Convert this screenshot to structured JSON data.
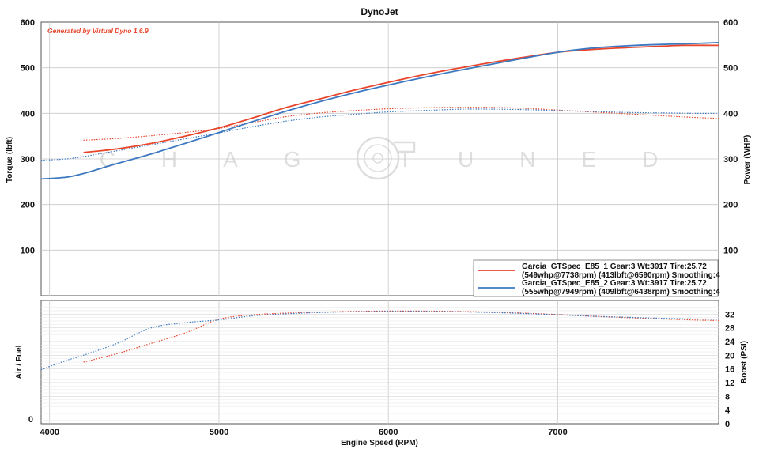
{
  "chart_data": [
    {
      "type": "line",
      "title": "DynoJet",
      "note": "Generated by Virtual Dyno 1.6.9",
      "xlabel": "Engine Speed (RPM)",
      "ylabel": "Torque (lbft)",
      "y2label": "Power (WHP)",
      "xlim": [
        3950,
        7950
      ],
      "ylim": [
        0,
        600
      ],
      "y2lim": [
        0,
        600
      ],
      "xticks": [
        4000,
        5000,
        6000,
        7000
      ],
      "yticks": [
        100,
        200,
        300,
        400,
        500,
        600
      ],
      "y2ticks": [
        100,
        200,
        300,
        400,
        500,
        600
      ],
      "grid": true,
      "legend_position": "bottom-right",
      "watermark": "CHAG TUNED",
      "series": [
        {
          "name": "Garcia_GTSpec_E85_1 Gear:3 Wt:3917 Tire:25.72",
          "detail": "(549whp@7738rpm) (413lbft@6590rpm) Smoothing:4",
          "color": "#e8452b",
          "measure": "power",
          "style": "solid",
          "x": [
            4200,
            4400,
            4600,
            4800,
            5000,
            5200,
            5400,
            5600,
            5800,
            6000,
            6200,
            6400,
            6600,
            6800,
            7000,
            7200,
            7400,
            7600,
            7738,
            7950
          ],
          "y": [
            314,
            322,
            334,
            350,
            368,
            390,
            413,
            432,
            451,
            468,
            484,
            498,
            511,
            523,
            534,
            540,
            544,
            547,
            549,
            549
          ]
        },
        {
          "name": "Garcia_GTSpec_E85_1 Gear:3 Wt:3917 Tire:25.72",
          "color": "#e8452b",
          "measure": "torque",
          "style": "dotted",
          "x": [
            4200,
            4400,
            4600,
            4800,
            5000,
            5200,
            5400,
            5600,
            5800,
            6000,
            6200,
            6400,
            6590,
            6800,
            7000,
            7200,
            7400,
            7600,
            7800,
            7950
          ],
          "y": [
            341,
            345,
            351,
            358,
            367,
            380,
            393,
            401,
            406,
            410,
            412,
            413,
            413,
            411,
            407,
            403,
            399,
            395,
            391,
            389
          ]
        },
        {
          "name": "Garcia_GTSpec_E85_2 Gear:3 Wt:3917 Tire:25.72",
          "detail": "(555whp@7949rpm) (409lbft@6438rpm) Smoothing:4",
          "color": "#3d79c1",
          "measure": "power",
          "style": "solid",
          "x": [
            3950,
            4100,
            4200,
            4400,
            4600,
            4800,
            5000,
            5200,
            5400,
            5600,
            5800,
            6000,
            6200,
            6400,
            6600,
            6800,
            7000,
            7200,
            7400,
            7600,
            7800,
            7949
          ],
          "y": [
            256,
            260,
            268,
            290,
            311,
            334,
            358,
            382,
            405,
            426,
            445,
            462,
            478,
            493,
            507,
            521,
            534,
            543,
            548,
            551,
            553,
            555
          ]
        },
        {
          "name": "Garcia_GTSpec_E85_2 Gear:3 Wt:3917 Tire:25.72",
          "color": "#3d79c1",
          "measure": "torque",
          "style": "dotted",
          "x": [
            3950,
            4100,
            4200,
            4400,
            4600,
            4800,
            5000,
            5200,
            5400,
            5600,
            5800,
            6000,
            6200,
            6438,
            6600,
            6800,
            7000,
            7200,
            7400,
            7600,
            7800,
            7950
          ],
          "y": [
            297,
            300,
            305,
            318,
            331,
            344,
            357,
            371,
            383,
            392,
            398,
            403,
            406,
            409,
            409,
            408,
            406,
            404,
            402,
            401,
            400,
            400
          ]
        }
      ]
    },
    {
      "type": "line",
      "xlabel": "Engine Speed (RPM)",
      "ylabel": "Air / Fuel",
      "y2label": "Boost (PSI)",
      "xlim": [
        3950,
        7950
      ],
      "y2lim": [
        0,
        36
      ],
      "yticks": [
        0
      ],
      "y2ticks": [
        0,
        4,
        8,
        12,
        16,
        20,
        24,
        28,
        32
      ],
      "series": [
        {
          "name": "Garcia_GTSpec_E85_1",
          "color": "#e8452b",
          "measure": "boost",
          "style": "dotted",
          "x": [
            4200,
            4400,
            4600,
            4800,
            5000,
            5200,
            5400,
            5600,
            5800,
            6000,
            6200,
            6400,
            6600,
            6800,
            7000,
            7200,
            7400,
            7600,
            7800,
            7950
          ],
          "y": [
            18,
            20.5,
            23.5,
            26.5,
            30.5,
            31.8,
            32.3,
            32.6,
            32.8,
            32.9,
            32.9,
            32.8,
            32.6,
            32.3,
            31.9,
            31.4,
            31.0,
            30.6,
            30.3,
            30.1
          ]
        },
        {
          "name": "Garcia_GTSpec_E85_2",
          "color": "#3d79c1",
          "measure": "boost",
          "style": "dotted",
          "x": [
            3950,
            4100,
            4200,
            4400,
            4600,
            4800,
            5000,
            5200,
            5400,
            5600,
            5800,
            6000,
            6200,
            6400,
            6600,
            6800,
            7000,
            7200,
            7400,
            7600,
            7800,
            7950
          ],
          "y": [
            15.8,
            18.5,
            20,
            23.5,
            28,
            29.5,
            30.3,
            31.5,
            32.1,
            32.5,
            32.7,
            32.8,
            32.8,
            32.7,
            32.5,
            32.2,
            31.8,
            31.4,
            31.1,
            30.8,
            30.6,
            30.5
          ]
        }
      ]
    }
  ]
}
